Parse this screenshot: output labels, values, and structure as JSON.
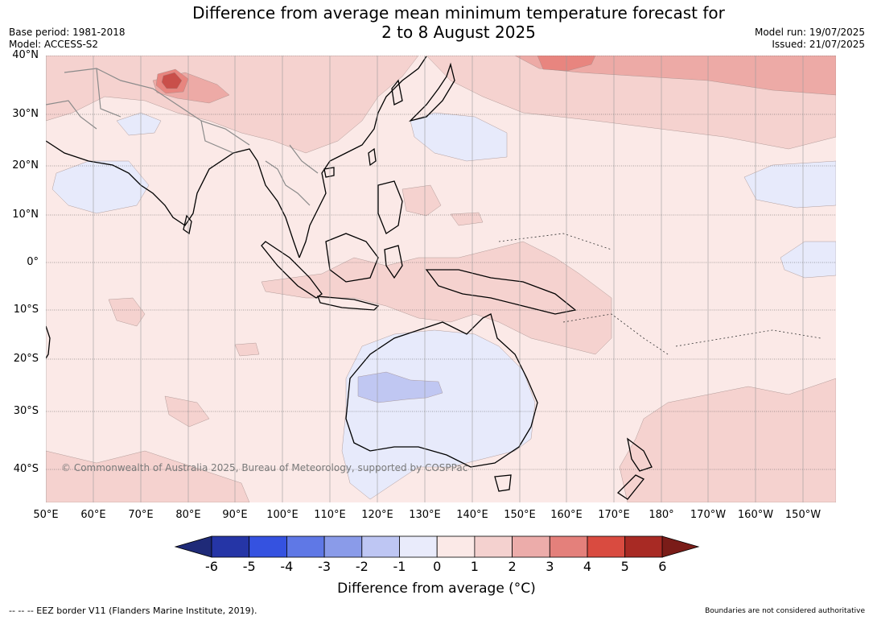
{
  "header": {
    "title_line1": "Difference from average mean minimum temperature forecast for",
    "title_line2": "2 to 8 August 2025",
    "base_period": "Base period: 1981-2018",
    "model": "Model: ACCESS-S2",
    "model_run": "Model run: 19/07/2025",
    "issued": "Issued: 21/07/2025"
  },
  "map": {
    "lat_labels": [
      "40°N",
      "30°N",
      "20°N",
      "10°N",
      "0°",
      "10°S",
      "20°S",
      "30°S",
      "40°S"
    ],
    "lon_labels": [
      "50°E",
      "60°E",
      "70°E",
      "80°E",
      "90°E",
      "100°E",
      "110°E",
      "120°E",
      "130°E",
      "140°E",
      "150°E",
      "160°E",
      "170°E",
      "180°",
      "170°W",
      "160°W",
      "150°W"
    ],
    "copyright": "© Commonwealth of Australia 2025, Bureau of Meteorology, supported by COSPPac",
    "colors": {
      "background": "#fbe9e7",
      "ocean_neutral": "#fbe9e7",
      "light_warm": "#f5d2cf",
      "mid_warm": "#edaaa6",
      "warm": "#e8857f",
      "hot": "#c94f4a",
      "cool_light": "#e7eafb",
      "cool": "#c0c7f2",
      "coast": "#000000",
      "border": "#8a8a8a",
      "grid": "#555555"
    }
  },
  "colorbar": {
    "labels": [
      "-6",
      "-5",
      "-4",
      "-3",
      "-2",
      "-1",
      "0",
      "1",
      "2",
      "3",
      "4",
      "5",
      "6"
    ],
    "colors": [
      "#2535a6",
      "#3552e0",
      "#5f78e6",
      "#8a9be9",
      "#bec6f3",
      "#e9ebfb",
      "#fbe9e7",
      "#f4d1cf",
      "#ecacaa",
      "#e4807b",
      "#d94b40",
      "#a82a24"
    ],
    "low_extend_color": "#1f2a78",
    "high_extend_color": "#7a1c18",
    "title": "Difference from average (°C)"
  },
  "footer": {
    "eez_note": "--  --  -- EEZ border V11 (Flanders Marine Institute, 2019).",
    "boundaries_note": "Boundaries are not considered authoritative"
  }
}
